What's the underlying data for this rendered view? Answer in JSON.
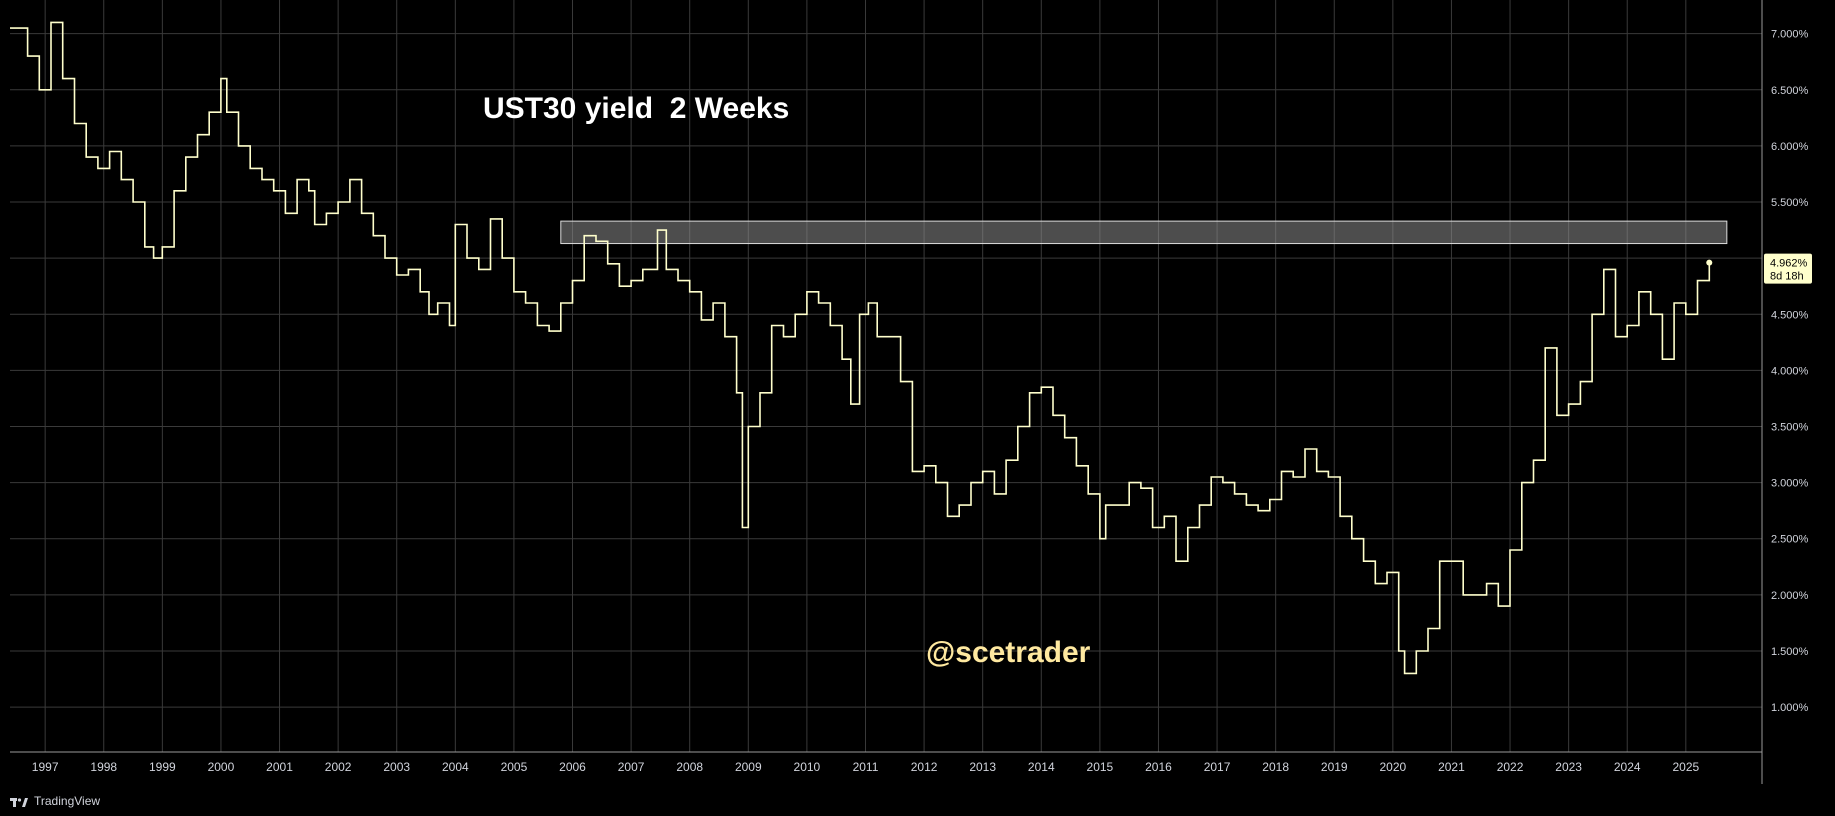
{
  "chart_data": {
    "type": "line",
    "title": "UST30 yield  2 Weeks",
    "watermark": "@scetrader",
    "y_axis": {
      "min": 0.6,
      "max": 7.3,
      "ticks": [
        "7.000%",
        "6.500%",
        "6.000%",
        "5.500%",
        "5.000%",
        "4.500%",
        "4.000%",
        "3.500%",
        "3.000%",
        "2.500%",
        "2.000%",
        "1.500%",
        "1.000%"
      ],
      "tick_values": [
        7.0,
        6.5,
        6.0,
        5.5,
        5.0,
        4.5,
        4.0,
        3.5,
        3.0,
        2.5,
        2.0,
        1.5,
        1.0
      ]
    },
    "x_axis": {
      "min": 1996.4,
      "max": 2026.3,
      "ticks": [
        "1997",
        "1998",
        "1999",
        "2000",
        "2001",
        "2002",
        "2003",
        "2004",
        "2005",
        "2006",
        "2007",
        "2008",
        "2009",
        "2010",
        "2011",
        "2012",
        "2013",
        "2014",
        "2015",
        "2016",
        "2017",
        "2018",
        "2019",
        "2020",
        "2021",
        "2022",
        "2023",
        "2024",
        "2025"
      ]
    },
    "resistance_zone": {
      "x_start": 2005.8,
      "x_end": 2025.7,
      "y_low": 5.13,
      "y_high": 5.33
    },
    "last_value_label": {
      "value": "4.962%",
      "countdown": "8d 18h"
    },
    "series": [
      {
        "color": "#ffffcc",
        "x": [
          1996.4,
          1996.7,
          1996.9,
          1997.1,
          1997.3,
          1997.5,
          1997.7,
          1997.9,
          1998.1,
          1998.3,
          1998.5,
          1998.7,
          1998.85,
          1999.0,
          1999.2,
          1999.4,
          1999.6,
          1999.8,
          2000.0,
          2000.1,
          2000.3,
          2000.5,
          2000.7,
          2000.9,
          2001.1,
          2001.3,
          2001.5,
          2001.6,
          2001.8,
          2002.0,
          2002.2,
          2002.4,
          2002.6,
          2002.8,
          2003.0,
          2003.2,
          2003.4,
          2003.55,
          2003.7,
          2003.9,
          2004.0,
          2004.2,
          2004.4,
          2004.6,
          2004.8,
          2005.0,
          2005.2,
          2005.4,
          2005.6,
          2005.8,
          2006.0,
          2006.2,
          2006.4,
          2006.6,
          2006.8,
          2007.0,
          2007.2,
          2007.45,
          2007.6,
          2007.8,
          2008.0,
          2008.2,
          2008.4,
          2008.6,
          2008.8,
          2008.9,
          2009.0,
          2009.2,
          2009.4,
          2009.6,
          2009.8,
          2010.0,
          2010.2,
          2010.4,
          2010.6,
          2010.75,
          2010.9,
          2011.05,
          2011.2,
          2011.4,
          2011.6,
          2011.8,
          2012.0,
          2012.2,
          2012.4,
          2012.6,
          2012.8,
          2013.0,
          2013.2,
          2013.4,
          2013.6,
          2013.8,
          2014.0,
          2014.2,
          2014.4,
          2014.6,
          2014.8,
          2015.0,
          2015.1,
          2015.3,
          2015.5,
          2015.7,
          2015.9,
          2016.1,
          2016.3,
          2016.5,
          2016.7,
          2016.9,
          2017.1,
          2017.3,
          2017.5,
          2017.7,
          2017.9,
          2018.1,
          2018.3,
          2018.5,
          2018.7,
          2018.9,
          2019.1,
          2019.3,
          2019.5,
          2019.7,
          2019.9,
          2020.1,
          2020.2,
          2020.4,
          2020.6,
          2020.8,
          2021.0,
          2021.2,
          2021.4,
          2021.6,
          2021.8,
          2022.0,
          2022.2,
          2022.4,
          2022.6,
          2022.8,
          2023.0,
          2023.2,
          2023.4,
          2023.6,
          2023.8,
          2024.0,
          2024.2,
          2024.4,
          2024.6,
          2024.8,
          2025.0,
          2025.2,
          2025.4
        ],
        "values": [
          7.05,
          6.8,
          6.5,
          7.1,
          6.6,
          6.2,
          5.9,
          5.8,
          5.95,
          5.7,
          5.5,
          5.1,
          5.0,
          5.1,
          5.6,
          5.9,
          6.1,
          6.3,
          6.6,
          6.3,
          6.0,
          5.8,
          5.7,
          5.6,
          5.4,
          5.7,
          5.6,
          5.3,
          5.4,
          5.5,
          5.7,
          5.4,
          5.2,
          5.0,
          4.85,
          4.9,
          4.7,
          4.5,
          4.6,
          4.4,
          5.3,
          5.0,
          4.9,
          5.35,
          5.0,
          4.7,
          4.6,
          4.4,
          4.35,
          4.6,
          4.8,
          5.2,
          5.15,
          4.95,
          4.75,
          4.8,
          4.9,
          5.25,
          4.9,
          4.8,
          4.7,
          4.45,
          4.6,
          4.3,
          3.8,
          2.6,
          3.5,
          3.8,
          4.4,
          4.3,
          4.5,
          4.7,
          4.6,
          4.4,
          4.1,
          3.7,
          4.5,
          4.6,
          4.3,
          4.3,
          3.9,
          3.1,
          3.15,
          3.0,
          2.7,
          2.8,
          3.0,
          3.1,
          2.9,
          3.2,
          3.5,
          3.8,
          3.85,
          3.6,
          3.4,
          3.15,
          2.9,
          2.5,
          2.8,
          2.8,
          3.0,
          2.95,
          2.6,
          2.7,
          2.3,
          2.6,
          2.8,
          3.05,
          3.0,
          2.9,
          2.8,
          2.75,
          2.85,
          3.1,
          3.05,
          3.3,
          3.1,
          3.05,
          2.7,
          2.5,
          2.3,
          2.1,
          2.2,
          1.5,
          1.3,
          1.5,
          1.7,
          2.3,
          2.3,
          2.0,
          2.0,
          2.1,
          1.9,
          2.4,
          3.0,
          3.2,
          4.2,
          3.6,
          3.7,
          3.9,
          4.5,
          4.9,
          4.3,
          4.4,
          4.7,
          4.5,
          4.1,
          4.6,
          4.5,
          4.8,
          4.96
        ]
      }
    ]
  }
}
